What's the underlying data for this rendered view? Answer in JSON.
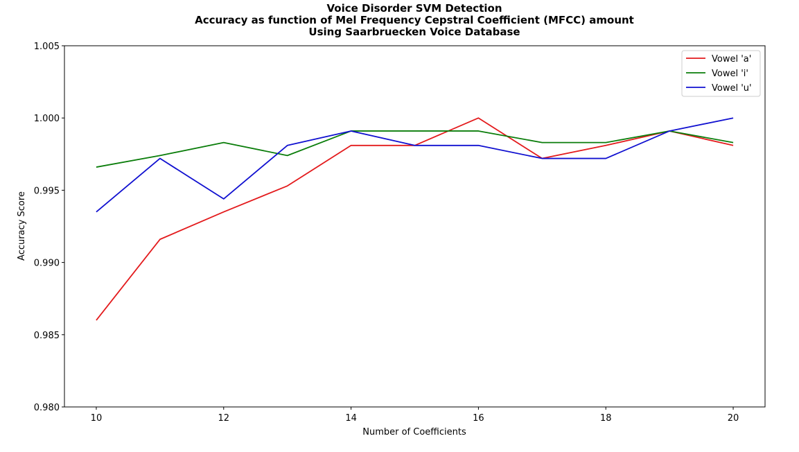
{
  "chart_data": {
    "type": "line",
    "title_lines": [
      "Voice Disorder SVM Detection",
      "Accuracy as function of Mel Frequency Cepstral Coefficient (MFCC) amount",
      "Using Saarbruecken Voice Database"
    ],
    "xlabel": "Number of Coefficients",
    "ylabel": "Accuracy Score",
    "xlim": [
      9.5,
      20.5
    ],
    "ylim": [
      0.98,
      1.005
    ],
    "x_ticks": [
      10,
      12,
      14,
      16,
      18,
      20
    ],
    "x_tick_labels": [
      "10",
      "12",
      "14",
      "16",
      "18",
      "20"
    ],
    "y_ticks": [
      0.98,
      0.985,
      0.99,
      0.995,
      1.0,
      1.005
    ],
    "y_tick_labels": [
      "0.980",
      "0.985",
      "0.990",
      "0.995",
      "1.000",
      "1.005"
    ],
    "grid": false,
    "legend_position": "top-right",
    "x": [
      10,
      11,
      12,
      13,
      14,
      15,
      16,
      17,
      18,
      19,
      20
    ],
    "series": [
      {
        "name": "Vowel 'a'",
        "color": "#e31a1c",
        "values": [
          0.986,
          0.9916,
          0.9935,
          0.9953,
          0.9981,
          0.9981,
          1.0,
          0.9972,
          0.9981,
          0.9991,
          0.9981
        ]
      },
      {
        "name": "Vowel 'i'",
        "color": "#0a7d0a",
        "values": [
          0.9966,
          0.9974,
          0.9983,
          0.9974,
          0.9991,
          0.9991,
          0.9991,
          0.9983,
          0.9983,
          0.9991,
          0.9983
        ]
      },
      {
        "name": "Vowel 'u'",
        "color": "#1010d0",
        "values": [
          0.9935,
          0.9972,
          0.9944,
          0.9981,
          0.9991,
          0.9981,
          0.9981,
          0.9972,
          0.9972,
          0.9991,
          1.0
        ]
      }
    ]
  }
}
